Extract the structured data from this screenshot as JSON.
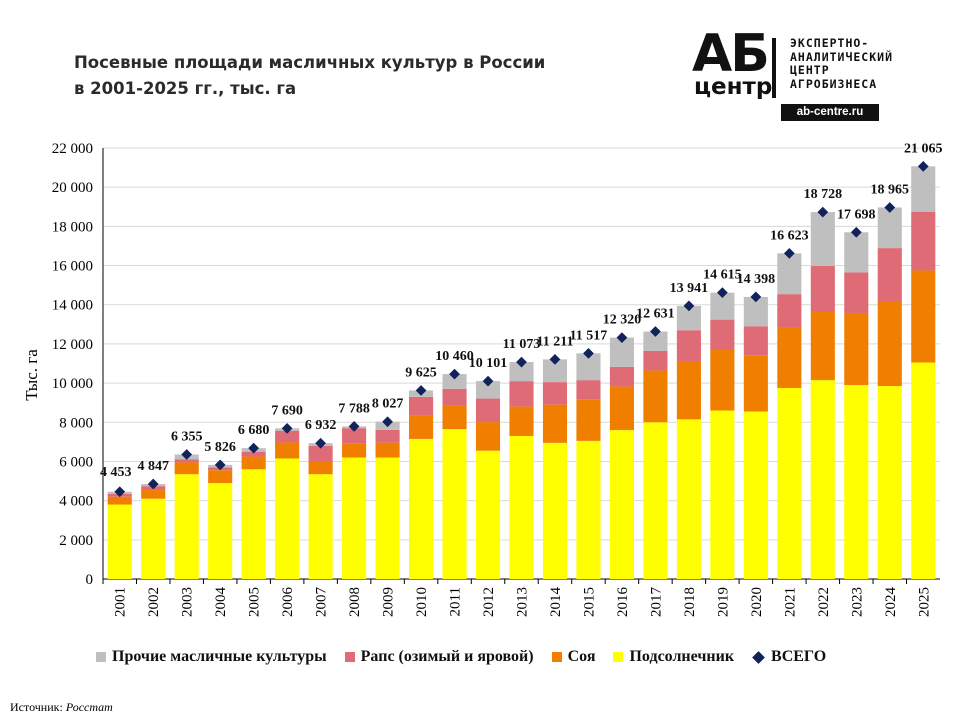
{
  "title": {
    "line1": "Посевные площади масличных культур в России",
    "line2": "в 2001-2025 гг., тыс. га"
  },
  "logo": {
    "mark_top": "АБ",
    "mark_bottom": "центр",
    "text_lines": [
      "ЭКСПЕРТНО-",
      "АНАЛИТИЧЕСКИЙ",
      "ЦЕНТР",
      "АГРОБИЗНЕСА"
    ],
    "url": "ab-centre.ru"
  },
  "source": {
    "label": "Источник:",
    "name": "Росстат"
  },
  "chart_data": {
    "type": "bar",
    "stacked": true,
    "title": "Посевные площади масличных культур в России в 2001-2025 гг., тыс. га",
    "ylabel": "Тыс. га",
    "xlabel": "",
    "ylim": [
      0,
      22000
    ],
    "y_ticks": [
      0,
      2000,
      4000,
      6000,
      8000,
      10000,
      12000,
      14000,
      16000,
      18000,
      20000,
      22000
    ],
    "y_tick_labels": [
      "0",
      "2 000",
      "4 000",
      "6 000",
      "8 000",
      "10 000",
      "12 000",
      "14 000",
      "16 000",
      "18 000",
      "20 000",
      "22 000"
    ],
    "grid": true,
    "legend_position": "bottom",
    "categories": [
      "2001",
      "2002",
      "2003",
      "2004",
      "2005",
      "2006",
      "2007",
      "2008",
      "2009",
      "2010",
      "2011",
      "2012",
      "2013",
      "2014",
      "2015",
      "2016",
      "2017",
      "2018",
      "2019",
      "2020",
      "2021",
      "2022",
      "2023",
      "2024",
      "2025"
    ],
    "series": [
      {
        "name": "Подсолнечник",
        "color": "#ffff00",
        "values": [
          3800,
          4100,
          5350,
          4900,
          5600,
          6150,
          5350,
          6200,
          6200,
          7150,
          7650,
          6550,
          7300,
          6950,
          7050,
          7600,
          8000,
          8150,
          8600,
          8550,
          9750,
          10150,
          9900,
          9850,
          11050
        ]
      },
      {
        "name": "Соя",
        "color": "#f07f00",
        "values": [
          400,
          440,
          600,
          650,
          650,
          820,
          650,
          700,
          760,
          1200,
          1210,
          1460,
          1500,
          1950,
          2100,
          2230,
          2640,
          2950,
          3090,
          2850,
          3090,
          3480,
          3650,
          4340,
          4700
        ]
      },
      {
        "name": "Рапс (озимый и яровой)",
        "color": "#de6b75",
        "values": [
          150,
          200,
          150,
          150,
          250,
          600,
          800,
          800,
          650,
          950,
          850,
          1200,
          1300,
          1150,
          1000,
          1000,
          1000,
          1600,
          1550,
          1500,
          1700,
          2350,
          2100,
          2700,
          3000
        ]
      },
      {
        "name": "Прочие масличные культуры",
        "color": "#bfbfbf",
        "values": [
          103,
          107,
          255,
          126,
          180,
          120,
          132,
          88,
          417,
          325,
          750,
          891,
          973,
          1161,
          1367,
          1490,
          991,
          1241,
          1375,
          1498,
          2083,
          2748,
          2048,
          2075,
          2315
        ]
      }
    ],
    "total": {
      "name": "ВСЕГО",
      "color": "#10235a",
      "values": [
        4453,
        4847,
        6355,
        5826,
        6680,
        7690,
        6932,
        7788,
        8027,
        9625,
        10460,
        10101,
        11073,
        11211,
        11517,
        12320,
        12631,
        13941,
        14615,
        14398,
        16623,
        18728,
        17698,
        18965,
        21065
      ],
      "labels": [
        "4 453",
        "4 847",
        "6 355",
        "5 826",
        "6 680",
        "7 690",
        "6 932",
        "7 788",
        "8 027",
        "9 625",
        "10 460",
        "10 101",
        "11 073",
        "11 211",
        "11 517",
        "12 320",
        "12 631",
        "13 941",
        "14 615",
        "14 398",
        "16 623",
        "18 728",
        "17 698",
        "18 965",
        "21 065"
      ]
    },
    "legend_entries": [
      "Прочие масличные культуры",
      "Рапс (озимый и яровой)",
      "Соя",
      "Подсолнечник",
      "ВСЕГО"
    ]
  }
}
